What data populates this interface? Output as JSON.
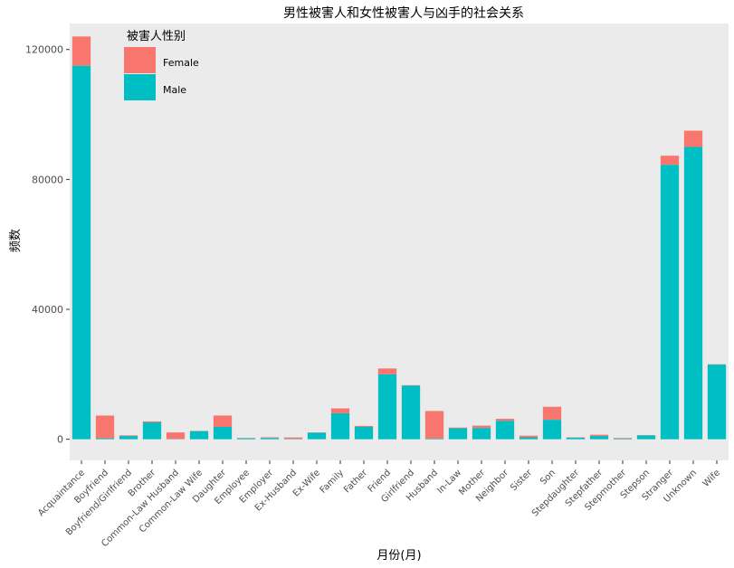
{
  "chart_data": {
    "type": "bar",
    "stacked": true,
    "title": "男性被害人和女性被害人与凶手的社会关系",
    "xlabel": "月份(月)",
    "ylabel": "频数",
    "ylim": [
      -6500,
      128000
    ],
    "yticks": [
      0,
      40000,
      80000,
      120000
    ],
    "grid": false,
    "legend": {
      "title": "被害人性别",
      "position": "top-left-inside"
    },
    "categories": [
      "Acquaintance",
      "Boyfriend",
      "Boyfriend/Girlfriend",
      "Brother",
      "Common-Law Husband",
      "Common-Law Wife",
      "Daughter",
      "Employee",
      "Employer",
      "Ex-Husband",
      "Ex-Wife",
      "Family",
      "Father",
      "Friend",
      "Girlfriend",
      "Husband",
      "In-Law",
      "Mother",
      "Neighbor",
      "Sister",
      "Son",
      "Stepdaughter",
      "Stepfather",
      "Stepmother",
      "Stepson",
      "Stranger",
      "Unknown",
      "Wife"
    ],
    "series": [
      {
        "name": "Male",
        "color": "#00BFC4",
        "values": [
          115000,
          300,
          1000,
          5200,
          100,
          2500,
          3800,
          300,
          400,
          150,
          2000,
          8000,
          3800,
          20000,
          16500,
          200,
          3400,
          3500,
          5700,
          600,
          6000,
          500,
          1000,
          200,
          1200,
          84500,
          90000,
          23000
        ]
      },
      {
        "name": "Female",
        "color": "#F8766D",
        "values": [
          9000,
          7000,
          200,
          300,
          2000,
          100,
          3500,
          100,
          200,
          400,
          100,
          1500,
          300,
          1800,
          150,
          8500,
          200,
          700,
          600,
          500,
          4000,
          100,
          400,
          200,
          100,
          2800,
          5000,
          100
        ]
      }
    ],
    "colors": {
      "panel_background": "#EBEBEB",
      "axis_text": "#4D4D4D",
      "tick": "#333333"
    }
  }
}
